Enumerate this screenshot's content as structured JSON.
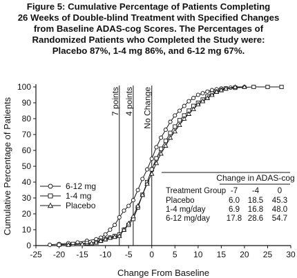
{
  "figure": {
    "title_lines": [
      "Figure 5:  Cumulative Percentage of Patients Completing",
      "26 Weeks of Double-blind Treatment with Specified Changes",
      "from Baseline ADAS-cog Scores. The Percentages of",
      "Randomized Patients who Completed the Study were:",
      "Placebo 87%, 1-4 mg 86%, and 6-12 mg 67%."
    ]
  },
  "chart_data": {
    "type": "line",
    "xlabel": "Change From Baseline",
    "ylabel": "Cumulative Percentage of Patients",
    "xlim": [
      -25,
      30
    ],
    "ylim": [
      0,
      100
    ],
    "xticks": [
      -25,
      -20,
      -15,
      -10,
      -5,
      0,
      5,
      10,
      15,
      20,
      25,
      30
    ],
    "yticks": [
      0,
      10,
      20,
      30,
      40,
      50,
      60,
      70,
      80,
      90,
      100
    ],
    "grid": false,
    "legend_position": "left-middle",
    "reference_lines": [
      {
        "x": -7,
        "label": "7 points"
      },
      {
        "x": -4,
        "label": "4 points"
      },
      {
        "x": 0,
        "label": "No Change"
      }
    ],
    "series": [
      {
        "name": "6-12 mg",
        "marker": "circle",
        "points": [
          [
            -22,
            0.5
          ],
          [
            -20,
            1
          ],
          [
            -18,
            1.5
          ],
          [
            -16,
            2
          ],
          [
            -14,
            3
          ],
          [
            -12,
            4
          ],
          [
            -11,
            5
          ],
          [
            -10,
            7
          ],
          [
            -9,
            10
          ],
          [
            -8,
            13
          ],
          [
            -7,
            17.8
          ],
          [
            -6,
            22
          ],
          [
            -5,
            25
          ],
          [
            -4,
            28.6
          ],
          [
            -3,
            35
          ],
          [
            -2,
            42
          ],
          [
            -1,
            48
          ],
          [
            0,
            54.7
          ],
          [
            1,
            62
          ],
          [
            2,
            68
          ],
          [
            3,
            73
          ],
          [
            4,
            78
          ],
          [
            5,
            82
          ],
          [
            6,
            85
          ],
          [
            7,
            88
          ],
          [
            8,
            91
          ],
          [
            9,
            93
          ],
          [
            10,
            95
          ],
          [
            11,
            96
          ],
          [
            12,
            97
          ],
          [
            13,
            98
          ],
          [
            14,
            98.5
          ],
          [
            15,
            99
          ],
          [
            17,
            99.5
          ],
          [
            20,
            100
          ]
        ]
      },
      {
        "name": "1-4 mg",
        "marker": "square",
        "points": [
          [
            -20,
            0.5
          ],
          [
            -17,
            1
          ],
          [
            -14,
            1.5
          ],
          [
            -12,
            2
          ],
          [
            -11,
            3
          ],
          [
            -10,
            4
          ],
          [
            -9,
            5
          ],
          [
            -8,
            6
          ],
          [
            -7,
            6.9
          ],
          [
            -6,
            10
          ],
          [
            -5,
            13
          ],
          [
            -4,
            16.8
          ],
          [
            -3,
            24
          ],
          [
            -2,
            32
          ],
          [
            -1,
            40
          ],
          [
            0,
            48
          ],
          [
            1,
            55
          ],
          [
            2,
            61
          ],
          [
            3,
            66
          ],
          [
            4,
            71
          ],
          [
            5,
            75
          ],
          [
            6,
            79
          ],
          [
            7,
            82
          ],
          [
            8,
            85
          ],
          [
            9,
            88
          ],
          [
            10,
            90
          ],
          [
            11,
            92
          ],
          [
            12,
            94
          ],
          [
            13,
            96
          ],
          [
            14,
            97
          ],
          [
            15,
            98
          ],
          [
            16,
            99
          ],
          [
            18,
            99.5
          ],
          [
            22,
            100
          ],
          [
            25,
            100
          ],
          [
            28,
            100
          ]
        ]
      },
      {
        "name": "Placebo",
        "marker": "triangle",
        "points": [
          [
            -18,
            0.5
          ],
          [
            -15,
            1
          ],
          [
            -13,
            1.5
          ],
          [
            -12,
            2
          ],
          [
            -11,
            3
          ],
          [
            -10,
            4
          ],
          [
            -9,
            5
          ],
          [
            -8,
            5.5
          ],
          [
            -7,
            6
          ],
          [
            -6,
            10
          ],
          [
            -5,
            14
          ],
          [
            -4,
            18.5
          ],
          [
            -3,
            25
          ],
          [
            -2,
            32
          ],
          [
            -1,
            39
          ],
          [
            0,
            45.3
          ],
          [
            1,
            52
          ],
          [
            2,
            58
          ],
          [
            3,
            63
          ],
          [
            4,
            68
          ],
          [
            5,
            72
          ],
          [
            6,
            76
          ],
          [
            7,
            80
          ],
          [
            8,
            83
          ],
          [
            9,
            86
          ],
          [
            10,
            89
          ],
          [
            11,
            91
          ],
          [
            12,
            93
          ],
          [
            13,
            95
          ],
          [
            14,
            97
          ],
          [
            15,
            98
          ],
          [
            16,
            99
          ],
          [
            18,
            100
          ],
          [
            20,
            100
          ]
        ]
      }
    ],
    "inset_table": {
      "title": "Change in ADAS-cog",
      "header": [
        "Treatment Group",
        "-7",
        "-4",
        "0"
      ],
      "rows": [
        [
          "Placebo",
          "6.0",
          "18.5",
          "45.3"
        ],
        [
          "1-4 mg/day",
          "6.9",
          "16.8",
          "48.0"
        ],
        [
          "6-12 mg/day",
          "17.8",
          "28.6",
          "54.7"
        ]
      ]
    }
  }
}
